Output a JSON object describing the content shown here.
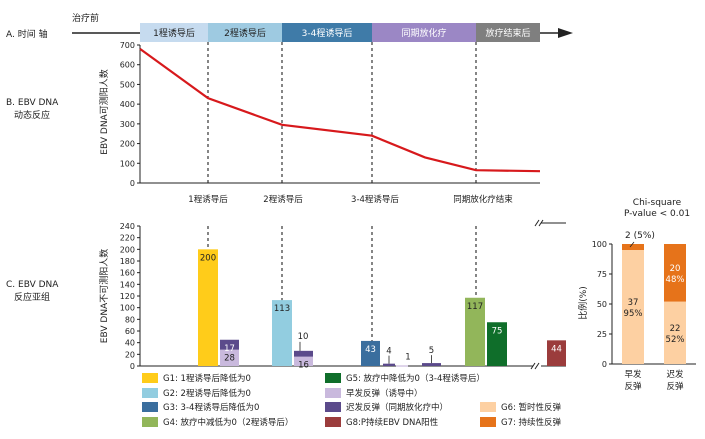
{
  "section_labels": {
    "a": "A. 时间 轴",
    "b": [
      "B. EBV DNA",
      "动态反应"
    ],
    "c": [
      "C. EBV DNA",
      "反应亚组"
    ]
  },
  "timeline": {
    "pre_label": "治疗前",
    "segments": [
      {
        "label": "1程诱导后",
        "color": "#c6dbef"
      },
      {
        "label": "2程诱导后",
        "color": "#9ecae1"
      },
      {
        "label": "3-4程诱导后",
        "color": "#3f7ba8"
      },
      {
        "label": "同期放化疗",
        "color": "#9b87c5"
      },
      {
        "label": "放疗结束后",
        "color": "#7f7f7f"
      }
    ]
  },
  "chart_data": [
    {
      "type": "line",
      "ylabel": "EBV DNA可测阳人数",
      "ylim": [
        0,
        700
      ],
      "yticks": [
        0,
        100,
        200,
        300,
        400,
        500,
        600,
        700
      ],
      "line_color": "#d7191c",
      "timepoints": [
        "1程诱导后",
        "2程诱导后",
        "3-4程诱导后",
        "同期放化疗结束"
      ],
      "x": [
        0,
        1,
        2,
        3,
        4,
        5,
        6
      ],
      "y": [
        680,
        430,
        295,
        240,
        130,
        65,
        60
      ]
    },
    {
      "type": "bar",
      "ylabel": "EBV DNA不可测阳人数",
      "ylim": [
        0,
        240
      ],
      "yticks": [
        0,
        20,
        40,
        60,
        80,
        100,
        120,
        140,
        160,
        180,
        200,
        220,
        240
      ],
      "bars": [
        {
          "group": "G1",
          "value": 200,
          "label": "200",
          "color": "#ffcc1a"
        },
        {
          "group": "G5",
          "value": 17,
          "label": "17",
          "color": "#5b4a8b"
        },
        {
          "group": "G5b",
          "value": 28,
          "label": "28",
          "color": "#c9b9dd"
        },
        {
          "group": "G2",
          "value": 113,
          "label": "113",
          "color": "#92cde0"
        },
        {
          "group": "G6a",
          "value": 10,
          "label": "10",
          "color": "#5b4a8b"
        },
        {
          "group": "G6b",
          "value": 16,
          "label": "16",
          "color": "#c9b9dd"
        },
        {
          "group": "G3",
          "value": 43,
          "label": "43",
          "color": "#3a6e9e"
        },
        {
          "group": "G7a",
          "value": 4,
          "label": "4",
          "color": "#5b4a8b"
        },
        {
          "group": "G7b",
          "value": 1,
          "label": "1",
          "color": "#c9b9dd"
        },
        {
          "group": "G8",
          "value": 5,
          "label": "5",
          "color": "#5b4a8b"
        },
        {
          "group": "G4",
          "value": 117,
          "label": "117",
          "color": "#92b65a"
        },
        {
          "group": "G5c",
          "value": 75,
          "label": "75",
          "color": "#0f6e2a"
        },
        {
          "group": "G9",
          "value": 44,
          "label": "44",
          "color": "#9b3c3c"
        }
      ]
    },
    {
      "type": "bar",
      "title": [
        "Chi-square",
        "P-value < 0.01"
      ],
      "annotation": "2 (5%)",
      "ylabel": "比例(%)",
      "ylim": [
        0,
        100
      ],
      "yticks": [
        0,
        25,
        50,
        75,
        100
      ],
      "categories": [
        [
          "早发",
          "反弹"
        ],
        [
          "迟发",
          "反弹"
        ]
      ],
      "series": [
        {
          "name": "G6: 暂时性反弹",
          "color": "#fdd0a2",
          "values": [
            95,
            52
          ],
          "labels": [
            [
              "37",
              "95%"
            ],
            [
              "22",
              "52%"
            ]
          ]
        },
        {
          "name": "G7: 持续性反弹",
          "color": "#e6731a",
          "values": [
            5,
            48
          ],
          "labels": [
            [
              "",
              ""
            ],
            [
              "20",
              "48%"
            ]
          ]
        }
      ]
    }
  ],
  "legend": [
    {
      "label": "G1: 1程诱导后降低为0",
      "color": "#ffcc1a"
    },
    {
      "label": "G2: 2程诱导后降低为0",
      "color": "#92cde0"
    },
    {
      "label": "G3: 3-4程诱导后降低为0",
      "color": "#3a6e9e"
    },
    {
      "label": "G4: 放疗中减低为0（2程诱导后）",
      "color": "#92b65a"
    },
    {
      "label": "G5: 放疗中降低为0（3-4程诱导后）",
      "color": "#0f6e2a"
    },
    {
      "label": "早发反弹（诱导中）",
      "color": "#c9b9dd"
    },
    {
      "label": "迟发反弹（同期放化疗中）",
      "color": "#5b4a8b"
    },
    {
      "label": "G8:P持续EBV DNA阳性",
      "color": "#9b3c3c"
    },
    {
      "label": "G6: 暂时性反弹",
      "color": "#fdd0a2"
    },
    {
      "label": "G7: 持续性反弹",
      "color": "#e6731a"
    }
  ]
}
